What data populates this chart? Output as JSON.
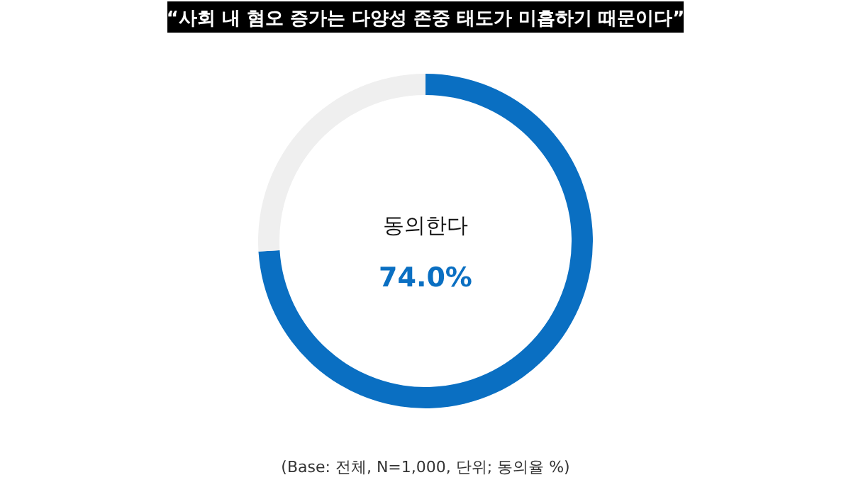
{
  "chart_data": {
    "type": "donut",
    "title": "“사회 내 혐오 증가는 다양성 존중 태도가 미흡하기 때문이다”",
    "categories": [
      "동의한다",
      null
    ],
    "values": [
      74.0,
      26.0
    ],
    "colors": [
      "#0a6fc2",
      "#efefef"
    ],
    "value_labels": [
      "74.0%",
      null
    ],
    "annotations": [
      "(Base: 전체, N=1,000, 단위; 동의율 %)"
    ]
  }
}
